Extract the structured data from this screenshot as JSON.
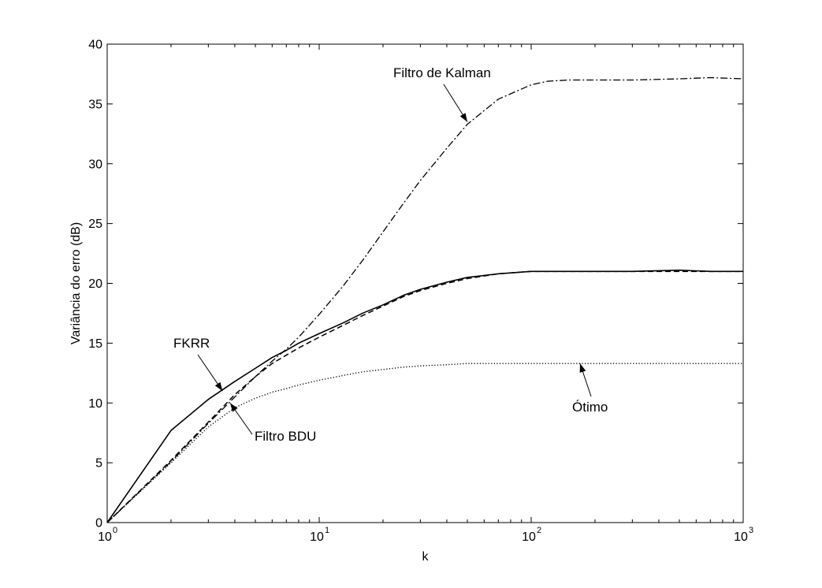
{
  "chart_data": {
    "type": "line",
    "title": "",
    "xlabel": "k",
    "ylabel": "Variância do erro (dB)",
    "xscale": "log",
    "xlim": [
      1,
      1000
    ],
    "ylim": [
      0,
      40
    ],
    "grid": false,
    "legend": "none",
    "x_ticks": [
      {
        "value": 1,
        "base": "10",
        "exp": "0"
      },
      {
        "value": 10,
        "base": "10",
        "exp": "1"
      },
      {
        "value": 100,
        "base": "10",
        "exp": "2"
      },
      {
        "value": 1000,
        "base": "10",
        "exp": "3"
      }
    ],
    "y_ticks": [
      0,
      5,
      10,
      15,
      20,
      25,
      30,
      35,
      40
    ],
    "series": [
      {
        "name": "FKRR",
        "style": "solid",
        "x": [
          1,
          2,
          3,
          4,
          5,
          6,
          7,
          8,
          10,
          13,
          16,
          20,
          25,
          30,
          40,
          50,
          70,
          100,
          150,
          200,
          300,
          500,
          700,
          1000
        ],
        "y": [
          0,
          7.7,
          10.3,
          11.8,
          12.9,
          13.8,
          14.4,
          15.0,
          15.8,
          16.7,
          17.5,
          18.2,
          19.0,
          19.5,
          20.1,
          20.5,
          20.8,
          21.0,
          21.0,
          21.0,
          21.0,
          21.1,
          21.0,
          21.0
        ]
      },
      {
        "name": "Filtro BDU",
        "style": "dashed",
        "x": [
          1,
          2,
          3,
          4,
          5,
          6,
          7,
          8,
          10,
          13,
          16,
          20,
          25,
          30,
          40,
          50,
          70,
          100,
          150,
          200,
          300,
          500,
          700,
          1000
        ],
        "y": [
          0,
          5.2,
          8.4,
          10.7,
          12.2,
          13.3,
          14.0,
          14.6,
          15.5,
          16.5,
          17.3,
          18.1,
          18.9,
          19.4,
          20.0,
          20.4,
          20.8,
          21.0,
          21.0,
          21.0,
          21.0,
          21.0,
          21.0,
          21.0
        ]
      },
      {
        "name": "Filtro de Kalman",
        "style": "dashdot",
        "x": [
          1,
          2,
          3,
          4,
          5,
          6,
          7,
          8,
          10,
          13,
          16,
          20,
          25,
          30,
          40,
          50,
          70,
          100,
          120,
          150,
          200,
          300,
          500,
          700,
          1000
        ],
        "y": [
          0,
          5.1,
          8.3,
          10.5,
          12.2,
          13.5,
          14.5,
          15.5,
          17.4,
          19.8,
          21.9,
          24.3,
          26.7,
          28.6,
          31.3,
          33.3,
          35.4,
          36.6,
          36.9,
          37.0,
          37.0,
          37.0,
          37.1,
          37.2,
          37.1
        ]
      },
      {
        "name": "Ótimo",
        "style": "dotted",
        "x": [
          1,
          2,
          3,
          4,
          5,
          6,
          7,
          8,
          10,
          13,
          16,
          20,
          25,
          30,
          40,
          50,
          70,
          100,
          150,
          200,
          300,
          500,
          700,
          1000
        ],
        "y": [
          0,
          5.0,
          8.0,
          9.6,
          10.4,
          10.9,
          11.2,
          11.5,
          11.9,
          12.3,
          12.6,
          12.8,
          13.0,
          13.1,
          13.2,
          13.3,
          13.3,
          13.3,
          13.3,
          13.3,
          13.3,
          13.3,
          13.3,
          13.3
        ]
      }
    ],
    "annotations": [
      {
        "text": "Filtro de Kalman",
        "target_x": 50,
        "target_y": 33.5
      },
      {
        "text": "FKRR",
        "target_x": 3.5,
        "target_y": 11.0
      },
      {
        "text": "Filtro BDU",
        "target_x": 3.8,
        "target_y": 10.0
      },
      {
        "text": "Ótimo",
        "target_x": 170,
        "target_y": 13.3
      }
    ]
  }
}
